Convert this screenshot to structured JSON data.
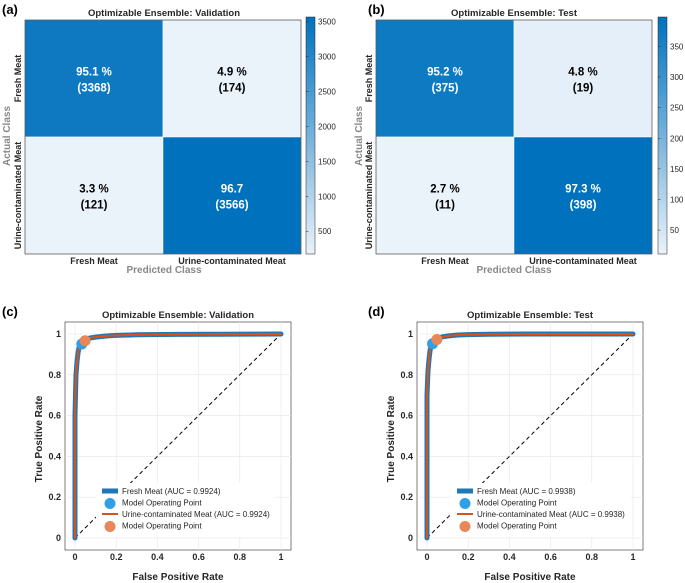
{
  "figure_labels": [
    "(a)",
    "(b)",
    "(c)",
    "(d)"
  ],
  "chart_data": [
    {
      "type": "heatmap",
      "panel": "(a)",
      "title": "Optimizable Ensemble: Validation",
      "xlabel": "Predicted Class",
      "ylabel": "Actual Class",
      "classes": [
        "Fresh Meat",
        "Urine-contaminated Meat"
      ],
      "counts": [
        [
          3368,
          174
        ],
        [
          121,
          3566
        ]
      ],
      "percent_labels": [
        [
          "95.1 %",
          "4.9 %"
        ],
        [
          "3.3 %",
          "96.7"
        ]
      ],
      "count_labels": [
        [
          "(3368)",
          "(174)"
        ],
        [
          "(121)",
          "(3566)"
        ]
      ],
      "colorbar_range": [
        174,
        3566
      ],
      "colorbar_ticks": [
        500,
        1000,
        1500,
        2000,
        2500,
        3000,
        3500
      ]
    },
    {
      "type": "heatmap",
      "panel": "(b)",
      "title": "Optimizable Ensemble: Test",
      "xlabel": "Predicted Class",
      "ylabel": "Actual Class",
      "classes": [
        "Fresh Meat",
        "Urine-contaminated Meat"
      ],
      "counts": [
        [
          375,
          19
        ],
        [
          11,
          398
        ]
      ],
      "percent_labels": [
        [
          "95.2 %",
          "4.8 %"
        ],
        [
          "2.7 %",
          "97.3 %"
        ]
      ],
      "count_labels": [
        [
          "(375)",
          "(19)"
        ],
        [
          "(11)",
          "(398)"
        ]
      ],
      "colorbar_range": [
        11,
        398
      ],
      "colorbar_ticks": [
        50,
        100,
        150,
        200,
        250,
        300,
        350
      ]
    },
    {
      "type": "line",
      "panel": "(c)",
      "title": "Optimizable Ensemble: Validation",
      "xlabel": "False Positive Rate",
      "ylabel": "True Positive Rate",
      "xlim": [
        0,
        1
      ],
      "ylim": [
        0,
        1
      ],
      "xticks": [
        0,
        0.2,
        0.4,
        0.6,
        0.8,
        1
      ],
      "yticks": [
        0,
        0.2,
        0.4,
        0.6,
        0.8,
        1
      ],
      "grid": true,
      "legend_position": "bottom-left",
      "series": [
        {
          "name": "Fresh Meat (AUC = 0.9924)",
          "color": "#1f77b4",
          "x": [
            0,
            0,
            0.005,
            0.01,
            0.015,
            0.02,
            0.03,
            0.04,
            0.05,
            0.07,
            0.1,
            0.15,
            0.2,
            0.3,
            0.5,
            0.7,
            1
          ],
          "y": [
            0,
            0.6,
            0.8,
            0.87,
            0.91,
            0.935,
            0.95,
            0.96,
            0.97,
            0.98,
            0.985,
            0.99,
            0.993,
            0.996,
            0.998,
            0.999,
            1
          ]
        },
        {
          "name": "Urine-contaminated Meat (AUC = 0.9924)",
          "color": "#d95319",
          "x": [
            0,
            0,
            0.005,
            0.01,
            0.015,
            0.02,
            0.03,
            0.04,
            0.05,
            0.07,
            0.1,
            0.15,
            0.2,
            0.3,
            0.5,
            0.7,
            1
          ],
          "y": [
            0,
            0.6,
            0.8,
            0.87,
            0.91,
            0.935,
            0.95,
            0.96,
            0.97,
            0.98,
            0.985,
            0.99,
            0.993,
            0.996,
            0.998,
            0.999,
            1
          ]
        }
      ],
      "operating_points": [
        {
          "name": "Model Operating Point",
          "x": 0.033,
          "y": 0.951,
          "color": "#2f9fe6"
        },
        {
          "name": "Model Operating Point",
          "x": 0.049,
          "y": 0.967,
          "color": "#e8875a"
        }
      ],
      "reference_line": {
        "x": [
          0,
          1
        ],
        "y": [
          0,
          1
        ],
        "style": "dashed"
      }
    },
    {
      "type": "line",
      "panel": "(d)",
      "title": "Optimizable Ensemble: Test",
      "xlabel": "False Positive Rate",
      "ylabel": "True Positive Rate",
      "xlim": [
        0,
        1
      ],
      "ylim": [
        0,
        1
      ],
      "xticks": [
        0,
        0.2,
        0.4,
        0.6,
        0.8,
        1
      ],
      "yticks": [
        0,
        0.2,
        0.4,
        0.6,
        0.8,
        1
      ],
      "grid": true,
      "legend_position": "bottom-left",
      "series": [
        {
          "name": "Fresh Meat (AUC = 0.9938)",
          "color": "#1f77b4",
          "x": [
            0,
            0,
            0.005,
            0.01,
            0.015,
            0.02,
            0.025,
            0.03,
            0.04,
            0.05,
            0.07,
            0.1,
            0.15,
            0.2,
            0.3,
            0.5,
            1
          ],
          "y": [
            0,
            0.7,
            0.82,
            0.88,
            0.92,
            0.94,
            0.95,
            0.955,
            0.965,
            0.975,
            0.985,
            0.99,
            0.995,
            0.997,
            0.999,
            1,
            1
          ]
        },
        {
          "name": "Urine-contaminated Meat (AUC = 0.9938)",
          "color": "#d95319",
          "x": [
            0,
            0,
            0.005,
            0.01,
            0.015,
            0.02,
            0.025,
            0.03,
            0.04,
            0.05,
            0.07,
            0.1,
            0.15,
            0.2,
            0.3,
            0.5,
            1
          ],
          "y": [
            0,
            0.7,
            0.82,
            0.88,
            0.92,
            0.94,
            0.95,
            0.955,
            0.965,
            0.975,
            0.985,
            0.99,
            0.995,
            0.997,
            0.999,
            1,
            1
          ]
        }
      ],
      "operating_points": [
        {
          "name": "Model Operating Point",
          "x": 0.027,
          "y": 0.952,
          "color": "#2f9fe6"
        },
        {
          "name": "Model Operating Point",
          "x": 0.048,
          "y": 0.973,
          "color": "#e8875a"
        }
      ],
      "reference_line": {
        "x": [
          0,
          1
        ],
        "y": [
          0,
          1
        ],
        "style": "dashed"
      }
    }
  ]
}
